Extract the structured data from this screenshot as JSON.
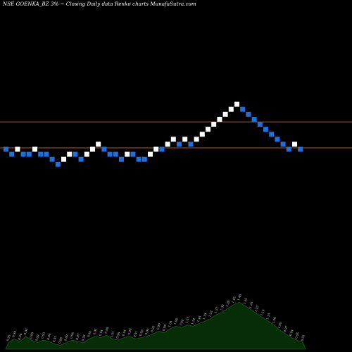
{
  "header": {
    "title": "NSE GOENKA_BZ 3% ~  Closing Daily data  Renko  charts MunafaSutra.com"
  },
  "colors": {
    "background": "#000000",
    "up_brick": "#ffffff",
    "down_brick": "#1e6fe0",
    "hline": "#b35a1f",
    "volume_fill": "#062d06",
    "volume_edge": "#1a5c1a",
    "volume_label": "#cfcfcf"
  },
  "chart_data": {
    "type": "renko",
    "brick_size_pct": 3,
    "bricks": [
      {
        "level": 0,
        "dir": "down"
      },
      {
        "level": -1,
        "dir": "down"
      },
      {
        "level": 0,
        "dir": "up"
      },
      {
        "level": -1,
        "dir": "down"
      },
      {
        "level": -1,
        "dir": "down"
      },
      {
        "level": 0,
        "dir": "up"
      },
      {
        "level": -1,
        "dir": "down"
      },
      {
        "level": -1,
        "dir": "down"
      },
      {
        "level": -2,
        "dir": "down"
      },
      {
        "level": -3,
        "dir": "down"
      },
      {
        "level": -2,
        "dir": "up"
      },
      {
        "level": -1,
        "dir": "up"
      },
      {
        "level": -1,
        "dir": "down"
      },
      {
        "level": -2,
        "dir": "down"
      },
      {
        "level": -1,
        "dir": "up"
      },
      {
        "level": 0,
        "dir": "up"
      },
      {
        "level": 1,
        "dir": "up"
      },
      {
        "level": 0,
        "dir": "down"
      },
      {
        "level": -1,
        "dir": "down"
      },
      {
        "level": -1,
        "dir": "down"
      },
      {
        "level": -2,
        "dir": "down"
      },
      {
        "level": -1,
        "dir": "up"
      },
      {
        "level": -1,
        "dir": "down"
      },
      {
        "level": -2,
        "dir": "down"
      },
      {
        "level": -2,
        "dir": "down"
      },
      {
        "level": -1,
        "dir": "up"
      },
      {
        "level": 0,
        "dir": "up"
      },
      {
        "level": 0,
        "dir": "down"
      },
      {
        "level": 1,
        "dir": "up"
      },
      {
        "level": 2,
        "dir": "up"
      },
      {
        "level": 1,
        "dir": "down"
      },
      {
        "level": 2,
        "dir": "up"
      },
      {
        "level": 1,
        "dir": "down"
      },
      {
        "level": 2,
        "dir": "up"
      },
      {
        "level": 3,
        "dir": "up"
      },
      {
        "level": 4,
        "dir": "up"
      },
      {
        "level": 5,
        "dir": "up"
      },
      {
        "level": 6,
        "dir": "up"
      },
      {
        "level": 7,
        "dir": "up"
      },
      {
        "level": 8,
        "dir": "up"
      },
      {
        "level": 9,
        "dir": "up"
      },
      {
        "level": 8,
        "dir": "down"
      },
      {
        "level": 7,
        "dir": "down"
      },
      {
        "level": 6,
        "dir": "down"
      },
      {
        "level": 5,
        "dir": "down"
      },
      {
        "level": 4,
        "dir": "down"
      },
      {
        "level": 3,
        "dir": "down"
      },
      {
        "level": 2,
        "dir": "down"
      },
      {
        "level": 1,
        "dir": "down"
      },
      {
        "level": 0,
        "dir": "down"
      },
      {
        "level": 1,
        "dir": "up"
      },
      {
        "level": 0,
        "dir": "down"
      }
    ],
    "horizontal_lines_levels": [
      5.2,
      0
    ],
    "volume_profile": [
      4,
      7,
      5,
      9,
      6,
      4,
      6,
      5,
      3,
      2,
      4,
      6,
      5,
      4,
      7,
      9,
      8,
      10,
      7,
      6,
      8,
      9,
      7,
      8,
      9,
      11,
      13,
      12,
      15,
      17,
      16,
      18,
      17,
      19,
      21,
      23,
      26,
      28,
      31,
      34,
      36,
      33,
      30,
      27,
      24,
      21,
      18,
      14,
      11,
      8,
      6,
      4
    ],
    "volume_labels": [
      "0.95",
      "0.99",
      "0.96",
      "0.93",
      "0.89",
      "0.89",
      "0.93",
      "0.94",
      "0.91",
      "0.88",
      "0.89",
      "0.96",
      "0.97",
      "0.93",
      "0.94",
      "0.95",
      "0.94",
      "0.98",
      "1.01",
      "0.99",
      "0.94",
      "0.90",
      "0.91",
      "0.93",
      "0.92",
      "0.95",
      "0.99",
      "0.98",
      "1.04",
      "1.06",
      "1.04",
      "1.07",
      "1.10",
      "1.14",
      "1.19",
      "1.22",
      "1.27",
      "1.32",
      "1.38",
      "1.42",
      "1.40",
      "1.35",
      "1.28",
      "1.22",
      "1.16",
      "1.10",
      "1.06",
      "1.00",
      "0.97",
      "0.94",
      "0.95",
      "0.91"
    ]
  }
}
